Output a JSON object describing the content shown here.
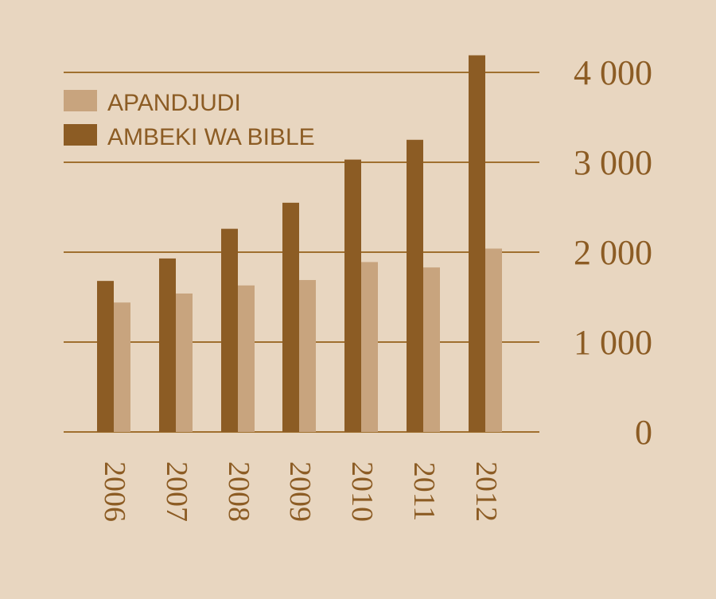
{
  "chart_data": {
    "type": "bar",
    "categories": [
      "2006",
      "2007",
      "2008",
      "2009",
      "2010",
      "2011",
      "2012"
    ],
    "series": [
      {
        "name": "AMBEKI WA BIBLE",
        "values": [
          1680,
          1930,
          2260,
          2550,
          3030,
          3250,
          4190
        ],
        "color": "#8c5c24"
      },
      {
        "name": "APANDJUDI",
        "values": [
          1440,
          1540,
          1630,
          1690,
          1890,
          1830,
          2040
        ],
        "color": "#c8a47e"
      }
    ],
    "yticks": [
      "0",
      "1 000",
      "2 000",
      "3 000",
      "4 000"
    ],
    "ylim": [
      0,
      4200
    ],
    "grid": true,
    "legend_position": "top-left",
    "colors": {
      "background": "#e8d6c0",
      "gridline": "#a0702f",
      "text": "#8c5c24"
    }
  }
}
